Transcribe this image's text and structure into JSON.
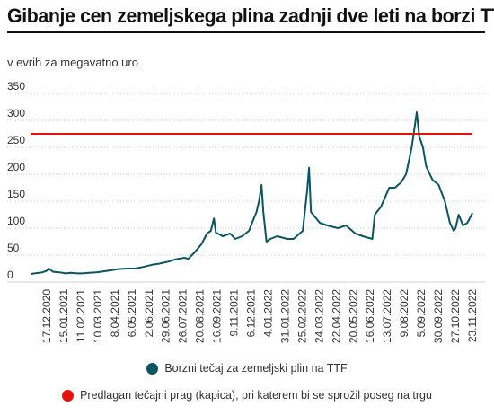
{
  "title": "Gibanje cen zemeljskega plina zadnji dve leti na borzi TTF",
  "subtitle": "v evrih za megavatno uro",
  "colors": {
    "series": "#0b5563",
    "threshold": "#e3120b",
    "grid": "#cccccc"
  },
  "legend": [
    {
      "label": "Borzni tečaj za zemeljski plin na TTF",
      "color": "#0b5563"
    },
    {
      "label": "Predlagan tečajni prag (kapica), pri katerem bi se sprožil poseg na trgu",
      "color": "#e3120b"
    }
  ],
  "chart_data": {
    "type": "line",
    "title": "Gibanje cen zemeljskega plina zadnji dve leti na borzi TTF",
    "ylabel": "v evrih za megavatno uro",
    "ylim": [
      0,
      350
    ],
    "yticks": [
      0,
      50,
      100,
      150,
      200,
      250,
      300,
      350
    ],
    "xlim": [
      "2020-12-17",
      "2022-11-23"
    ],
    "xtick_labels": [
      "17.12.2020",
      "15.01.2021",
      "11.02.2021",
      "10.03.2021",
      "8.04.2021",
      "6.05.2021",
      "2.06.2021",
      "29.06.2021",
      "26.07.2021",
      "20.08.2021",
      "16.09.2021",
      "9.11.2021",
      "6.12.2021",
      "4.01.2022",
      "31.01.2022",
      "25.02.2022",
      "24.03.2022",
      "22.04.2022",
      "20.05.2022",
      "16.06.2022",
      "13.07.2022",
      "9.08.2022",
      "5.09.2022",
      "30.09.2022",
      "27.10.2022",
      "23.11.2022"
    ],
    "grid": true,
    "legend_position": "bottom",
    "threshold": {
      "name": "Predlagan tečajni prag (kapica), pri katerem bi se sprožil poseg na trgu",
      "value": 275
    },
    "series": [
      {
        "name": "Borzni tečaj za zemeljski plin na TTF",
        "points": [
          [
            "2020-12-17",
            15
          ],
          [
            "2021-01-05",
            18
          ],
          [
            "2021-01-12",
            21
          ],
          [
            "2021-01-15",
            25
          ],
          [
            "2021-01-22",
            19
          ],
          [
            "2021-02-01",
            18
          ],
          [
            "2021-02-11",
            16
          ],
          [
            "2021-02-20",
            17
          ],
          [
            "2021-03-01",
            16
          ],
          [
            "2021-03-10",
            16
          ],
          [
            "2021-03-20",
            17
          ],
          [
            "2021-04-01",
            18
          ],
          [
            "2021-04-08",
            19
          ],
          [
            "2021-04-20",
            21
          ],
          [
            "2021-05-06",
            24
          ],
          [
            "2021-05-20",
            25
          ],
          [
            "2021-06-02",
            25
          ],
          [
            "2021-06-15",
            28
          ],
          [
            "2021-06-29",
            32
          ],
          [
            "2021-07-10",
            34
          ],
          [
            "2021-07-26",
            38
          ],
          [
            "2021-08-05",
            42
          ],
          [
            "2021-08-20",
            45
          ],
          [
            "2021-08-26",
            43
          ],
          [
            "2021-09-05",
            55
          ],
          [
            "2021-09-16",
            70
          ],
          [
            "2021-09-25",
            90
          ],
          [
            "2021-10-01",
            95
          ],
          [
            "2021-10-06",
            118
          ],
          [
            "2021-10-09",
            92
          ],
          [
            "2021-10-20",
            85
          ],
          [
            "2021-11-01",
            90
          ],
          [
            "2021-11-09",
            80
          ],
          [
            "2021-11-20",
            85
          ],
          [
            "2021-12-01",
            95
          ],
          [
            "2021-12-06",
            110
          ],
          [
            "2021-12-13",
            130
          ],
          [
            "2021-12-17",
            150
          ],
          [
            "2021-12-21",
            180
          ],
          [
            "2021-12-24",
            130
          ],
          [
            "2021-12-29",
            75
          ],
          [
            "2022-01-04",
            80
          ],
          [
            "2022-01-15",
            85
          ],
          [
            "2022-01-31",
            80
          ],
          [
            "2022-02-10",
            80
          ],
          [
            "2022-02-25",
            95
          ],
          [
            "2022-03-04",
            170
          ],
          [
            "2022-03-07",
            212
          ],
          [
            "2022-03-10",
            130
          ],
          [
            "2022-03-24",
            110
          ],
          [
            "2022-04-05",
            105
          ],
          [
            "2022-04-22",
            100
          ],
          [
            "2022-05-05",
            105
          ],
          [
            "2022-05-20",
            90
          ],
          [
            "2022-06-01",
            85
          ],
          [
            "2022-06-16",
            80
          ],
          [
            "2022-06-20",
            125
          ],
          [
            "2022-06-30",
            140
          ],
          [
            "2022-07-13",
            175
          ],
          [
            "2022-07-22",
            175
          ],
          [
            "2022-08-01",
            185
          ],
          [
            "2022-08-09",
            200
          ],
          [
            "2022-08-18",
            250
          ],
          [
            "2022-08-26",
            315
          ],
          [
            "2022-08-30",
            270
          ],
          [
            "2022-09-05",
            250
          ],
          [
            "2022-09-10",
            215
          ],
          [
            "2022-09-20",
            190
          ],
          [
            "2022-09-30",
            180
          ],
          [
            "2022-10-10",
            150
          ],
          [
            "2022-10-18",
            110
          ],
          [
            "2022-10-24",
            95
          ],
          [
            "2022-10-27",
            100
          ],
          [
            "2022-11-01",
            125
          ],
          [
            "2022-11-08",
            105
          ],
          [
            "2022-11-15",
            110
          ],
          [
            "2022-11-23",
            128
          ]
        ]
      }
    ]
  }
}
